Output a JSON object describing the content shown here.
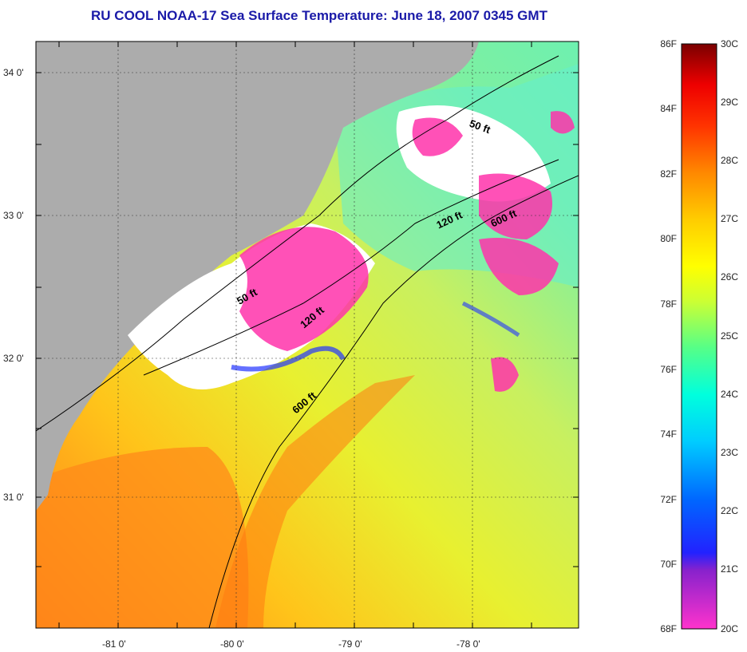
{
  "title": "RU COOL  NOAA-17  Sea Surface Temperature:  June 18, 2007 0345 GMT",
  "map": {
    "lat_labels": [
      "34 0'",
      "33 0'",
      "32 0'",
      "31 0'"
    ],
    "lon_labels": [
      "-81 0'",
      "-80 0'",
      "-79 0'",
      "-78 0'"
    ],
    "contour_labels": [
      "50 ft",
      "120 ft",
      "600 ft",
      "50 ft",
      "120 ft",
      "600 ft"
    ],
    "colors": {
      "land": "#acacac",
      "cloud": "#ffffff",
      "cold": "#ff33aa",
      "contour": "#000000"
    }
  },
  "colorbar": {
    "f_labels": [
      "86F",
      "84F",
      "82F",
      "80F",
      "78F",
      "76F",
      "74F",
      "72F",
      "70F",
      "68F"
    ],
    "c_labels": [
      "30C",
      "29C",
      "28C",
      "27C",
      "26C",
      "25C",
      "24C",
      "23C",
      "22C",
      "21C",
      "20C"
    ],
    "stops": [
      "#ff33cc",
      "#8822cc",
      "#2222ff",
      "#0066ff",
      "#00ccff",
      "#00ffdd",
      "#55ff88",
      "#ccff33",
      "#ffff00",
      "#ffcc00",
      "#ff8800",
      "#ff3300",
      "#ee0000",
      "#aa0000",
      "#7a0000"
    ]
  }
}
